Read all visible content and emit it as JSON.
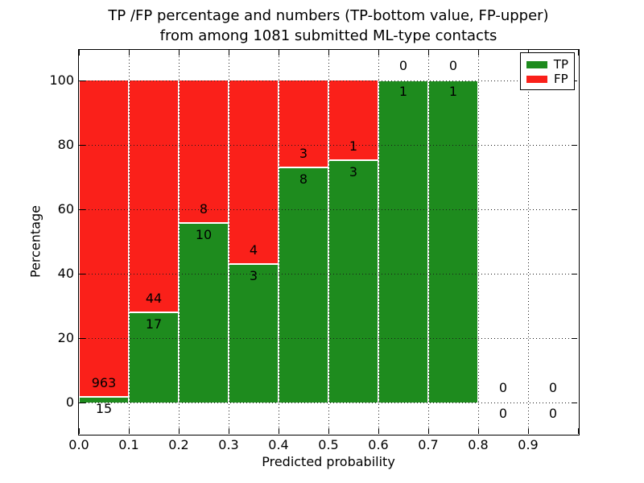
{
  "figure": {
    "title_line1": "TP /FP percentage and numbers (TP-bottom value, FP-upper)",
    "title_line2": "from among 1081 submitted ML-type contacts",
    "xlabel": "Predicted probability",
    "ylabel": "Percentage"
  },
  "chart_data": {
    "type": "bar",
    "mode": "stacked-percent",
    "title": "TP /FP percentage and numbers (TP-bottom value, FP-upper) from among 1081 submitted ML-type contacts",
    "xlabel": "Predicted probability",
    "ylabel": "Percentage",
    "bin_edges": [
      0.0,
      0.1,
      0.2,
      0.3,
      0.4,
      0.5,
      0.6,
      0.7,
      0.8,
      0.9,
      1.0
    ],
    "series": [
      {
        "name": "TP",
        "color": "#1e8b1e",
        "counts": [
          15,
          17,
          10,
          3,
          8,
          3,
          1,
          1,
          0,
          0
        ]
      },
      {
        "name": "FP",
        "color": "#fa201a",
        "counts": [
          963,
          44,
          8,
          4,
          3,
          1,
          0,
          0,
          0,
          0
        ]
      }
    ],
    "tp_percentages": [
      1.5,
      27.9,
      55.6,
      42.9,
      72.7,
      75.0,
      100.0,
      100.0,
      null,
      null
    ],
    "total_contacts": 1081,
    "xticks": [
      "0.0",
      "0.1",
      "0.2",
      "0.3",
      "0.4",
      "0.5",
      "0.6",
      "0.7",
      "0.8",
      "0.9"
    ],
    "yticks": [
      0,
      20,
      40,
      60,
      80,
      100
    ],
    "xlim": [
      0.0,
      1.0
    ],
    "ylim": [
      -10,
      109.5
    ],
    "grid": "dotted",
    "legend_position": "upper right"
  },
  "legend": {
    "entries": [
      {
        "label": "TP",
        "color": "#1e8b1e"
      },
      {
        "label": "FP",
        "color": "#fa201a"
      }
    ]
  }
}
